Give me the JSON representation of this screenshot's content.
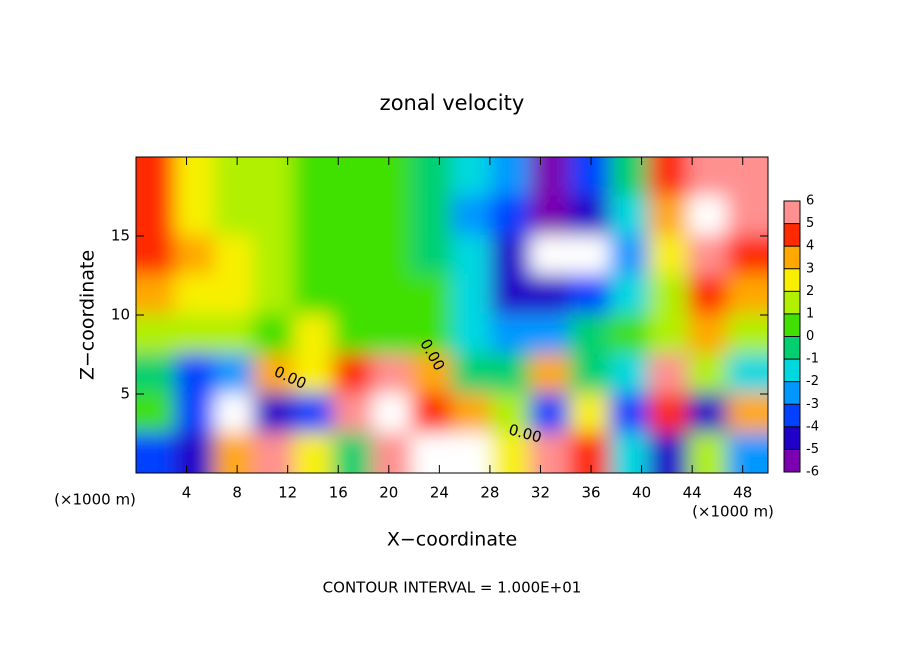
{
  "chart_data": {
    "type": "heatmap",
    "title": "zonal velocity",
    "x_label": "X−coordinate",
    "y_label": "Z−coordinate",
    "x_unit": "(×1000 m)",
    "y_unit": "(×1000 m)",
    "footer": "CONTOUR INTERVAL = 1.000E+01",
    "annotations": [
      "0.00",
      "0.00",
      "0.00"
    ],
    "xlim": [
      0,
      50
    ],
    "ylim": [
      0,
      20
    ],
    "xticks": [
      4,
      8,
      12,
      16,
      20,
      24,
      28,
      32,
      36,
      40,
      44,
      48
    ],
    "yticks": [
      5,
      10,
      15
    ],
    "x": [
      1.6,
      4.7,
      7.8,
      10.9,
      14.1,
      17.2,
      20.3,
      23.4,
      26.6,
      29.7,
      32.8,
      35.9,
      39.1,
      42.2,
      45.3,
      48.4
    ],
    "z": [
      18.75,
      16.25,
      13.75,
      11.25,
      8.75,
      6.25,
      3.75,
      1.25
    ],
    "values": [
      [
        4,
        2,
        1.5,
        1,
        0.8,
        0.5,
        0,
        -1,
        -2,
        -3,
        -6,
        -4,
        -1,
        4,
        6,
        5
      ],
      [
        4.5,
        2,
        1.5,
        1,
        0.8,
        0.5,
        0,
        -1,
        -2.5,
        -4,
        -6,
        -5,
        -2,
        3,
        7,
        5
      ],
      [
        4,
        3,
        2,
        1,
        0.8,
        0.5,
        0.3,
        -0.5,
        -2,
        -5,
        -7,
        -7,
        -3,
        2,
        5,
        4
      ],
      [
        3,
        2.5,
        2,
        1,
        0.8,
        0.5,
        0.3,
        0,
        -2,
        -5,
        -5,
        -4,
        -2,
        1,
        4,
        3
      ],
      [
        1,
        1.5,
        1,
        0.5,
        2,
        0.5,
        0.3,
        0,
        -2,
        -3,
        -3,
        -1,
        0,
        1,
        3,
        1
      ],
      [
        -0.5,
        -4,
        -3,
        3,
        2,
        4,
        5,
        3,
        -1,
        -0.5,
        3,
        -1,
        -2,
        5,
        1,
        -2
      ],
      [
        0,
        -4,
        7,
        -5,
        -4,
        6,
        7,
        4,
        3,
        1,
        -4,
        2,
        -4,
        4,
        -5,
        3
      ],
      [
        -4,
        -5,
        3,
        5,
        2,
        -1,
        5,
        7,
        7,
        2,
        5,
        4,
        -2,
        -5,
        1,
        -3
      ]
    ],
    "clim": [
      -6,
      6
    ],
    "cticks": [
      -6,
      -5,
      -4,
      -3,
      -2,
      -1,
      0,
      1,
      2,
      3,
      4,
      5,
      6
    ],
    "colors": [
      "#7a00b0",
      "#2000c8",
      "#0040ff",
      "#0098ff",
      "#00d8e0",
      "#00d070",
      "#40e000",
      "#b0f000",
      "#f8f000",
      "#ffa800",
      "#ff2a00",
      "#ff9090"
    ],
    "out_of_range_color": "#ffffff"
  }
}
